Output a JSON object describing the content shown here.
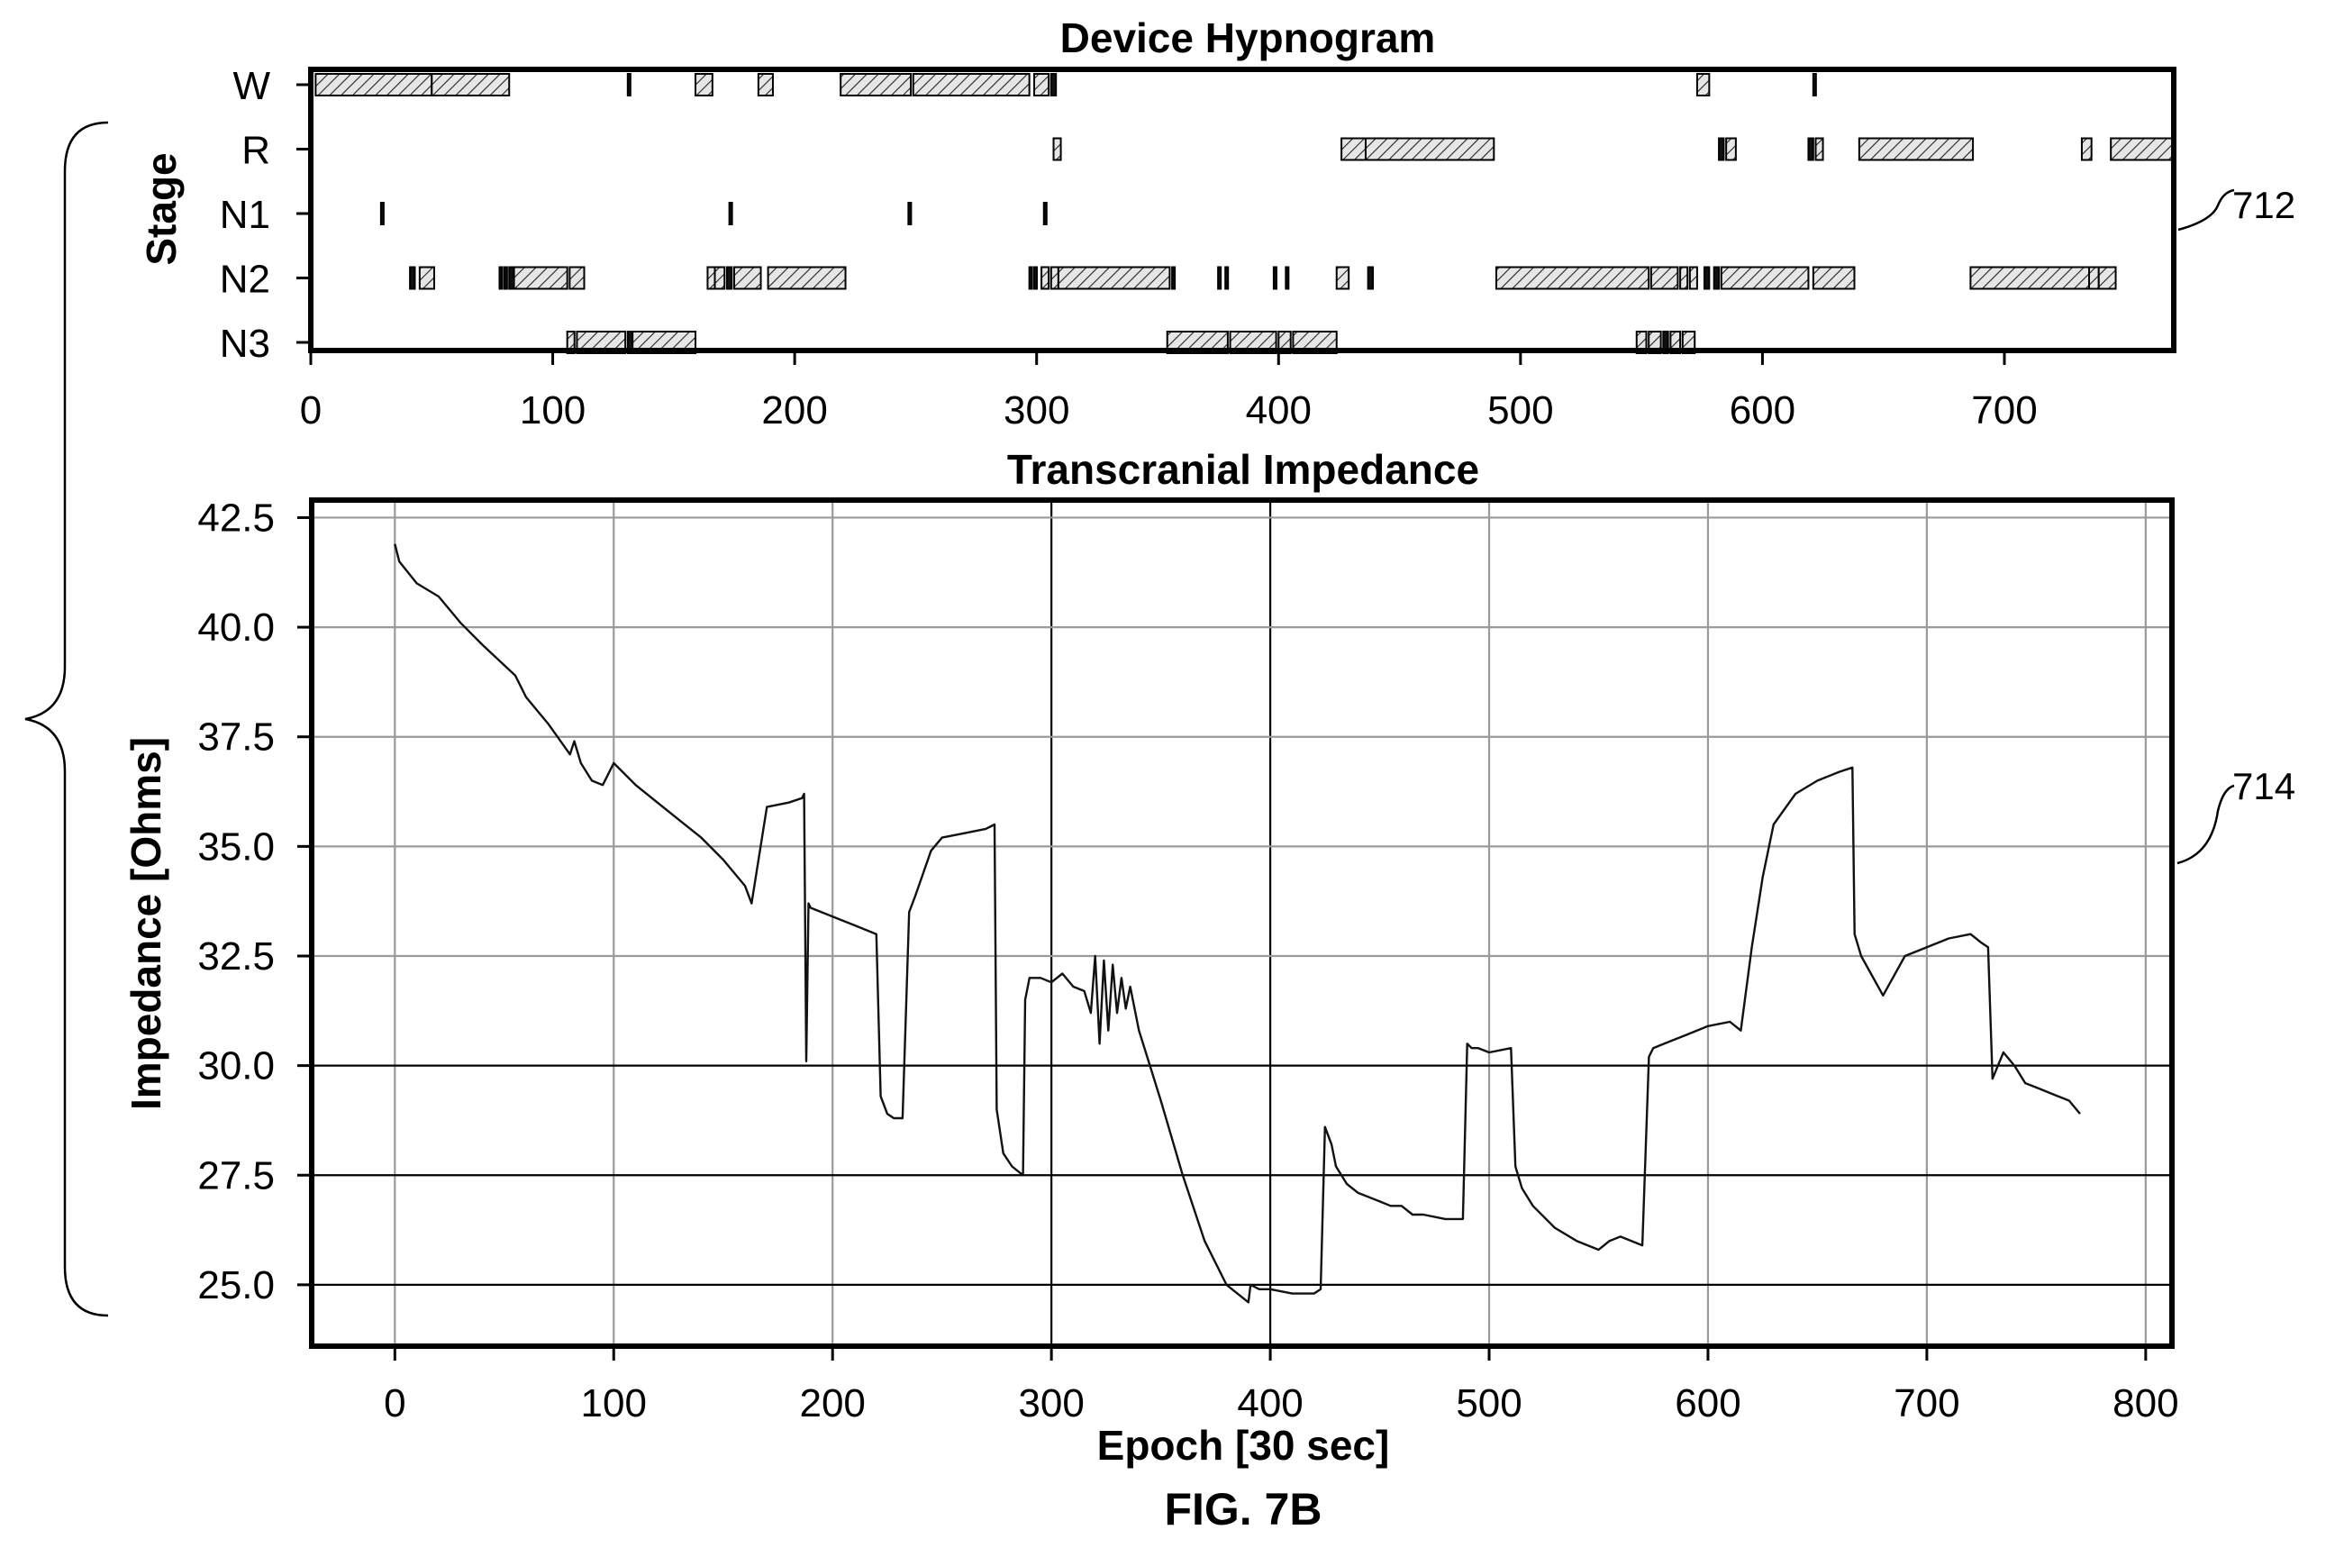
{
  "figure_label": "FIG. 7B",
  "reference_labels": {
    "hypnogram": "712",
    "impedance": "714"
  },
  "chart_data": [
    {
      "type": "timeline",
      "title": "Device Hypnogram",
      "ylabel": "Stage",
      "xlabel": "",
      "xlim": [
        0,
        770
      ],
      "x_ticks": [
        0,
        100,
        200,
        300,
        400,
        500,
        600,
        700
      ],
      "stages": [
        "W",
        "R",
        "N1",
        "N2",
        "N3"
      ],
      "series": [
        {
          "name": "W",
          "intervals": [
            [
              2,
              50
            ],
            [
              50,
              82
            ],
            [
              131,
              132
            ],
            [
              159,
              166
            ],
            [
              185,
              191
            ],
            [
              219,
              248
            ],
            [
              249,
              297
            ],
            [
              299,
              305
            ],
            [
              306,
              308
            ],
            [
              573,
              578
            ],
            [
              621,
              622
            ]
          ]
        },
        {
          "name": "R",
          "intervals": [
            [
              307,
              310
            ],
            [
              426,
              436
            ],
            [
              436,
              489
            ],
            [
              582,
              584
            ],
            [
              585,
              589
            ],
            [
              619,
              621
            ],
            [
              622,
              625
            ],
            [
              640,
              687
            ],
            [
              732,
              736
            ],
            [
              744,
              770
            ]
          ]
        },
        {
          "name": "N1",
          "intervals": [
            [
              29,
              30
            ],
            [
              173,
              174
            ],
            [
              247,
              248
            ],
            [
              303,
              304
            ]
          ]
        },
        {
          "name": "N2",
          "intervals": [
            [
              41,
              43
            ],
            [
              45,
              51
            ],
            [
              78,
              79
            ],
            [
              80,
              81
            ],
            [
              82,
              84
            ],
            [
              84,
              106
            ],
            [
              107,
              113
            ],
            [
              164,
              167
            ],
            [
              167,
              171
            ],
            [
              172,
              174
            ],
            [
              175,
              186
            ],
            [
              189,
              221
            ],
            [
              297,
              298
            ],
            [
              299,
              300
            ],
            [
              302,
              305
            ],
            [
              306,
              309
            ],
            [
              309,
              355
            ],
            [
              356,
              357
            ],
            [
              375,
              376
            ],
            [
              378,
              379
            ],
            [
              398,
              399
            ],
            [
              403,
              404
            ],
            [
              424,
              429
            ],
            [
              437,
              439
            ],
            [
              490,
              553
            ],
            [
              554,
              565
            ],
            [
              566,
              569
            ],
            [
              570,
              573
            ],
            [
              576,
              578
            ],
            [
              580,
              582
            ],
            [
              583,
              619
            ],
            [
              621,
              638
            ],
            [
              686,
              735
            ],
            [
              735,
              739
            ],
            [
              739,
              746
            ]
          ]
        },
        {
          "name": "N3",
          "intervals": [
            [
              106,
              109
            ],
            [
              110,
              130
            ],
            [
              131,
              133
            ],
            [
              133,
              159
            ],
            [
              354,
              379
            ],
            [
              380,
              399
            ],
            [
              400,
              405
            ],
            [
              406,
              424
            ],
            [
              548,
              552
            ],
            [
              553,
              558
            ],
            [
              559,
              561
            ],
            [
              562,
              566
            ],
            [
              567,
              572
            ]
          ]
        }
      ]
    },
    {
      "type": "line",
      "title": "Transcranial Impedance",
      "xlabel": "Epoch [30 sec]",
      "ylabel": "Impedance [Ohms]",
      "xlim": [
        -38,
        812
      ],
      "ylim": [
        23.6,
        42.9
      ],
      "x_ticks": [
        0,
        100,
        200,
        300,
        400,
        500,
        600,
        700,
        800
      ],
      "y_ticks": [
        25.0,
        27.5,
        30.0,
        32.5,
        35.0,
        37.5,
        40.0,
        42.5
      ],
      "grid": true,
      "series": [
        {
          "x": [
            0,
            2,
            10,
            20,
            30,
            40,
            55,
            60,
            70,
            80,
            82,
            85,
            90,
            95,
            100,
            110,
            120,
            130,
            140,
            150,
            160,
            163,
            170,
            180,
            186,
            187,
            188,
            189,
            190,
            200,
            210,
            220,
            222,
            225,
            228,
            232,
            235,
            238,
            245,
            250,
            260,
            270,
            274,
            275,
            278,
            282,
            287,
            288,
            290,
            295,
            300,
            305,
            310,
            315,
            318,
            320,
            322,
            324,
            326,
            328,
            330,
            332,
            334,
            336,
            340,
            345,
            350,
            360,
            370,
            380,
            390,
            391,
            395,
            400,
            410,
            420,
            423,
            425,
            428,
            430,
            435,
            440,
            450,
            455,
            460,
            465,
            470,
            480,
            488,
            490,
            492,
            495,
            500,
            510,
            512,
            515,
            520,
            530,
            540,
            550,
            555,
            560,
            565,
            570,
            573,
            575,
            580,
            590,
            600,
            610,
            615,
            620,
            625,
            630,
            640,
            650,
            660,
            666,
            667,
            670,
            680,
            690,
            700,
            710,
            720,
            725,
            728,
            730,
            735,
            740,
            745,
            750,
            760,
            765,
            770
          ],
          "y": [
            41.9,
            41.5,
            41.0,
            40.7,
            40.1,
            39.6,
            38.9,
            38.4,
            37.8,
            37.1,
            37.4,
            36.9,
            36.5,
            36.4,
            36.9,
            36.4,
            36.0,
            35.6,
            35.2,
            34.7,
            34.1,
            33.7,
            35.9,
            36.0,
            36.1,
            36.2,
            30.1,
            33.7,
            33.6,
            33.4,
            33.2,
            33.0,
            29.3,
            28.9,
            28.8,
            28.8,
            33.5,
            33.9,
            34.9,
            35.2,
            35.3,
            35.4,
            35.5,
            29.0,
            28.0,
            27.7,
            27.5,
            31.5,
            32.0,
            32.0,
            31.9,
            32.1,
            31.8,
            31.7,
            31.2,
            32.5,
            30.5,
            32.4,
            30.8,
            32.3,
            31.2,
            32.0,
            31.3,
            31.8,
            30.8,
            30.0,
            29.2,
            27.5,
            26.0,
            25.0,
            24.6,
            25.0,
            24.9,
            24.9,
            24.8,
            24.8,
            24.9,
            28.6,
            28.2,
            27.7,
            27.3,
            27.1,
            26.9,
            26.8,
            26.8,
            26.6,
            26.6,
            26.5,
            26.5,
            30.5,
            30.4,
            30.4,
            30.3,
            30.4,
            27.7,
            27.2,
            26.8,
            26.3,
            26.0,
            25.8,
            26.0,
            26.1,
            26.0,
            25.9,
            30.2,
            30.4,
            30.5,
            30.7,
            30.9,
            31.0,
            30.8,
            32.7,
            34.3,
            35.5,
            36.2,
            36.5,
            36.7,
            36.8,
            33.0,
            32.5,
            31.6,
            32.5,
            32.7,
            32.9,
            33.0,
            32.8,
            32.7,
            29.7,
            30.3,
            30.0,
            29.6,
            29.5,
            29.3,
            29.2,
            28.9
          ]
        }
      ]
    }
  ]
}
